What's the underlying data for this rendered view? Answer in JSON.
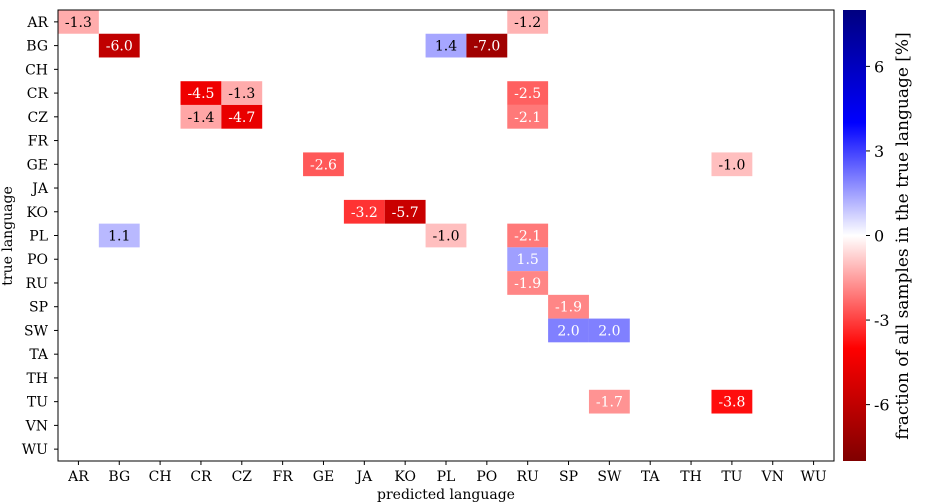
{
  "chart_data": {
    "type": "heatmap",
    "xlabel": "predicted language",
    "ylabel": "true language",
    "x_categories": [
      "AR",
      "BG",
      "CH",
      "CR",
      "CZ",
      "FR",
      "GE",
      "JA",
      "KO",
      "PL",
      "PO",
      "RU",
      "SP",
      "SW",
      "TA",
      "TH",
      "TU",
      "VN",
      "WU"
    ],
    "y_categories": [
      "AR",
      "BG",
      "CH",
      "CR",
      "CZ",
      "FR",
      "GE",
      "JA",
      "KO",
      "PL",
      "PO",
      "RU",
      "SP",
      "SW",
      "TA",
      "TH",
      "TU",
      "VN",
      "WU"
    ],
    "cells": [
      {
        "row": "AR",
        "col": "AR",
        "value": -1.3,
        "label": "-1.3"
      },
      {
        "row": "AR",
        "col": "RU",
        "value": -1.2,
        "label": "-1.2"
      },
      {
        "row": "BG",
        "col": "BG",
        "value": -6.0,
        "label": "-6.0"
      },
      {
        "row": "BG",
        "col": "PL",
        "value": 1.4,
        "label": "1.4"
      },
      {
        "row": "BG",
        "col": "PO",
        "value": -7.0,
        "label": "-7.0"
      },
      {
        "row": "CR",
        "col": "CR",
        "value": -4.5,
        "label": "-4.5"
      },
      {
        "row": "CR",
        "col": "CZ",
        "value": -1.3,
        "label": "-1.3"
      },
      {
        "row": "CR",
        "col": "RU",
        "value": -2.5,
        "label": "-2.5"
      },
      {
        "row": "CZ",
        "col": "CR",
        "value": -1.4,
        "label": "-1.4"
      },
      {
        "row": "CZ",
        "col": "CZ",
        "value": -4.7,
        "label": "-4.7"
      },
      {
        "row": "CZ",
        "col": "RU",
        "value": -2.1,
        "label": "-2.1"
      },
      {
        "row": "GE",
        "col": "GE",
        "value": -2.6,
        "label": "-2.6"
      },
      {
        "row": "GE",
        "col": "TU",
        "value": -1.0,
        "label": "-1.0"
      },
      {
        "row": "KO",
        "col": "JA",
        "value": -3.2,
        "label": "-3.2"
      },
      {
        "row": "KO",
        "col": "KO",
        "value": -5.7,
        "label": "-5.7"
      },
      {
        "row": "PL",
        "col": "BG",
        "value": 1.1,
        "label": "1.1"
      },
      {
        "row": "PL",
        "col": "PL",
        "value": -1.0,
        "label": "-1.0"
      },
      {
        "row": "PL",
        "col": "RU",
        "value": -2.1,
        "label": "-2.1"
      },
      {
        "row": "PO",
        "col": "RU",
        "value": 1.5,
        "label": "1.5"
      },
      {
        "row": "RU",
        "col": "RU",
        "value": -1.9,
        "label": "-1.9"
      },
      {
        "row": "SP",
        "col": "SP",
        "value": -1.9,
        "label": "-1.9"
      },
      {
        "row": "SW",
        "col": "SP",
        "value": 2.0,
        "label": "2.0"
      },
      {
        "row": "SW",
        "col": "SW",
        "value": 2.0,
        "label": "2.0"
      },
      {
        "row": "TU",
        "col": "SW",
        "value": -1.7,
        "label": "-1.7"
      },
      {
        "row": "TU",
        "col": "TU",
        "value": -3.8,
        "label": "-3.8"
      }
    ],
    "colorbar": {
      "label": "fraction of all samples in the true language [%]",
      "range": [
        -8,
        8
      ],
      "ticks": [
        -6,
        -3,
        0,
        3,
        6
      ],
      "tick_labels": [
        "-6",
        "-3",
        "0",
        "3",
        "6"
      ],
      "colormap": "seismic_r",
      "colors": {
        "negative_end": "#800000",
        "negative_mid": "#ff0000",
        "center": "#ffffff",
        "positive_mid": "#0000ff",
        "positive_end": "#000080"
      }
    },
    "grid": false,
    "legend": "none"
  }
}
